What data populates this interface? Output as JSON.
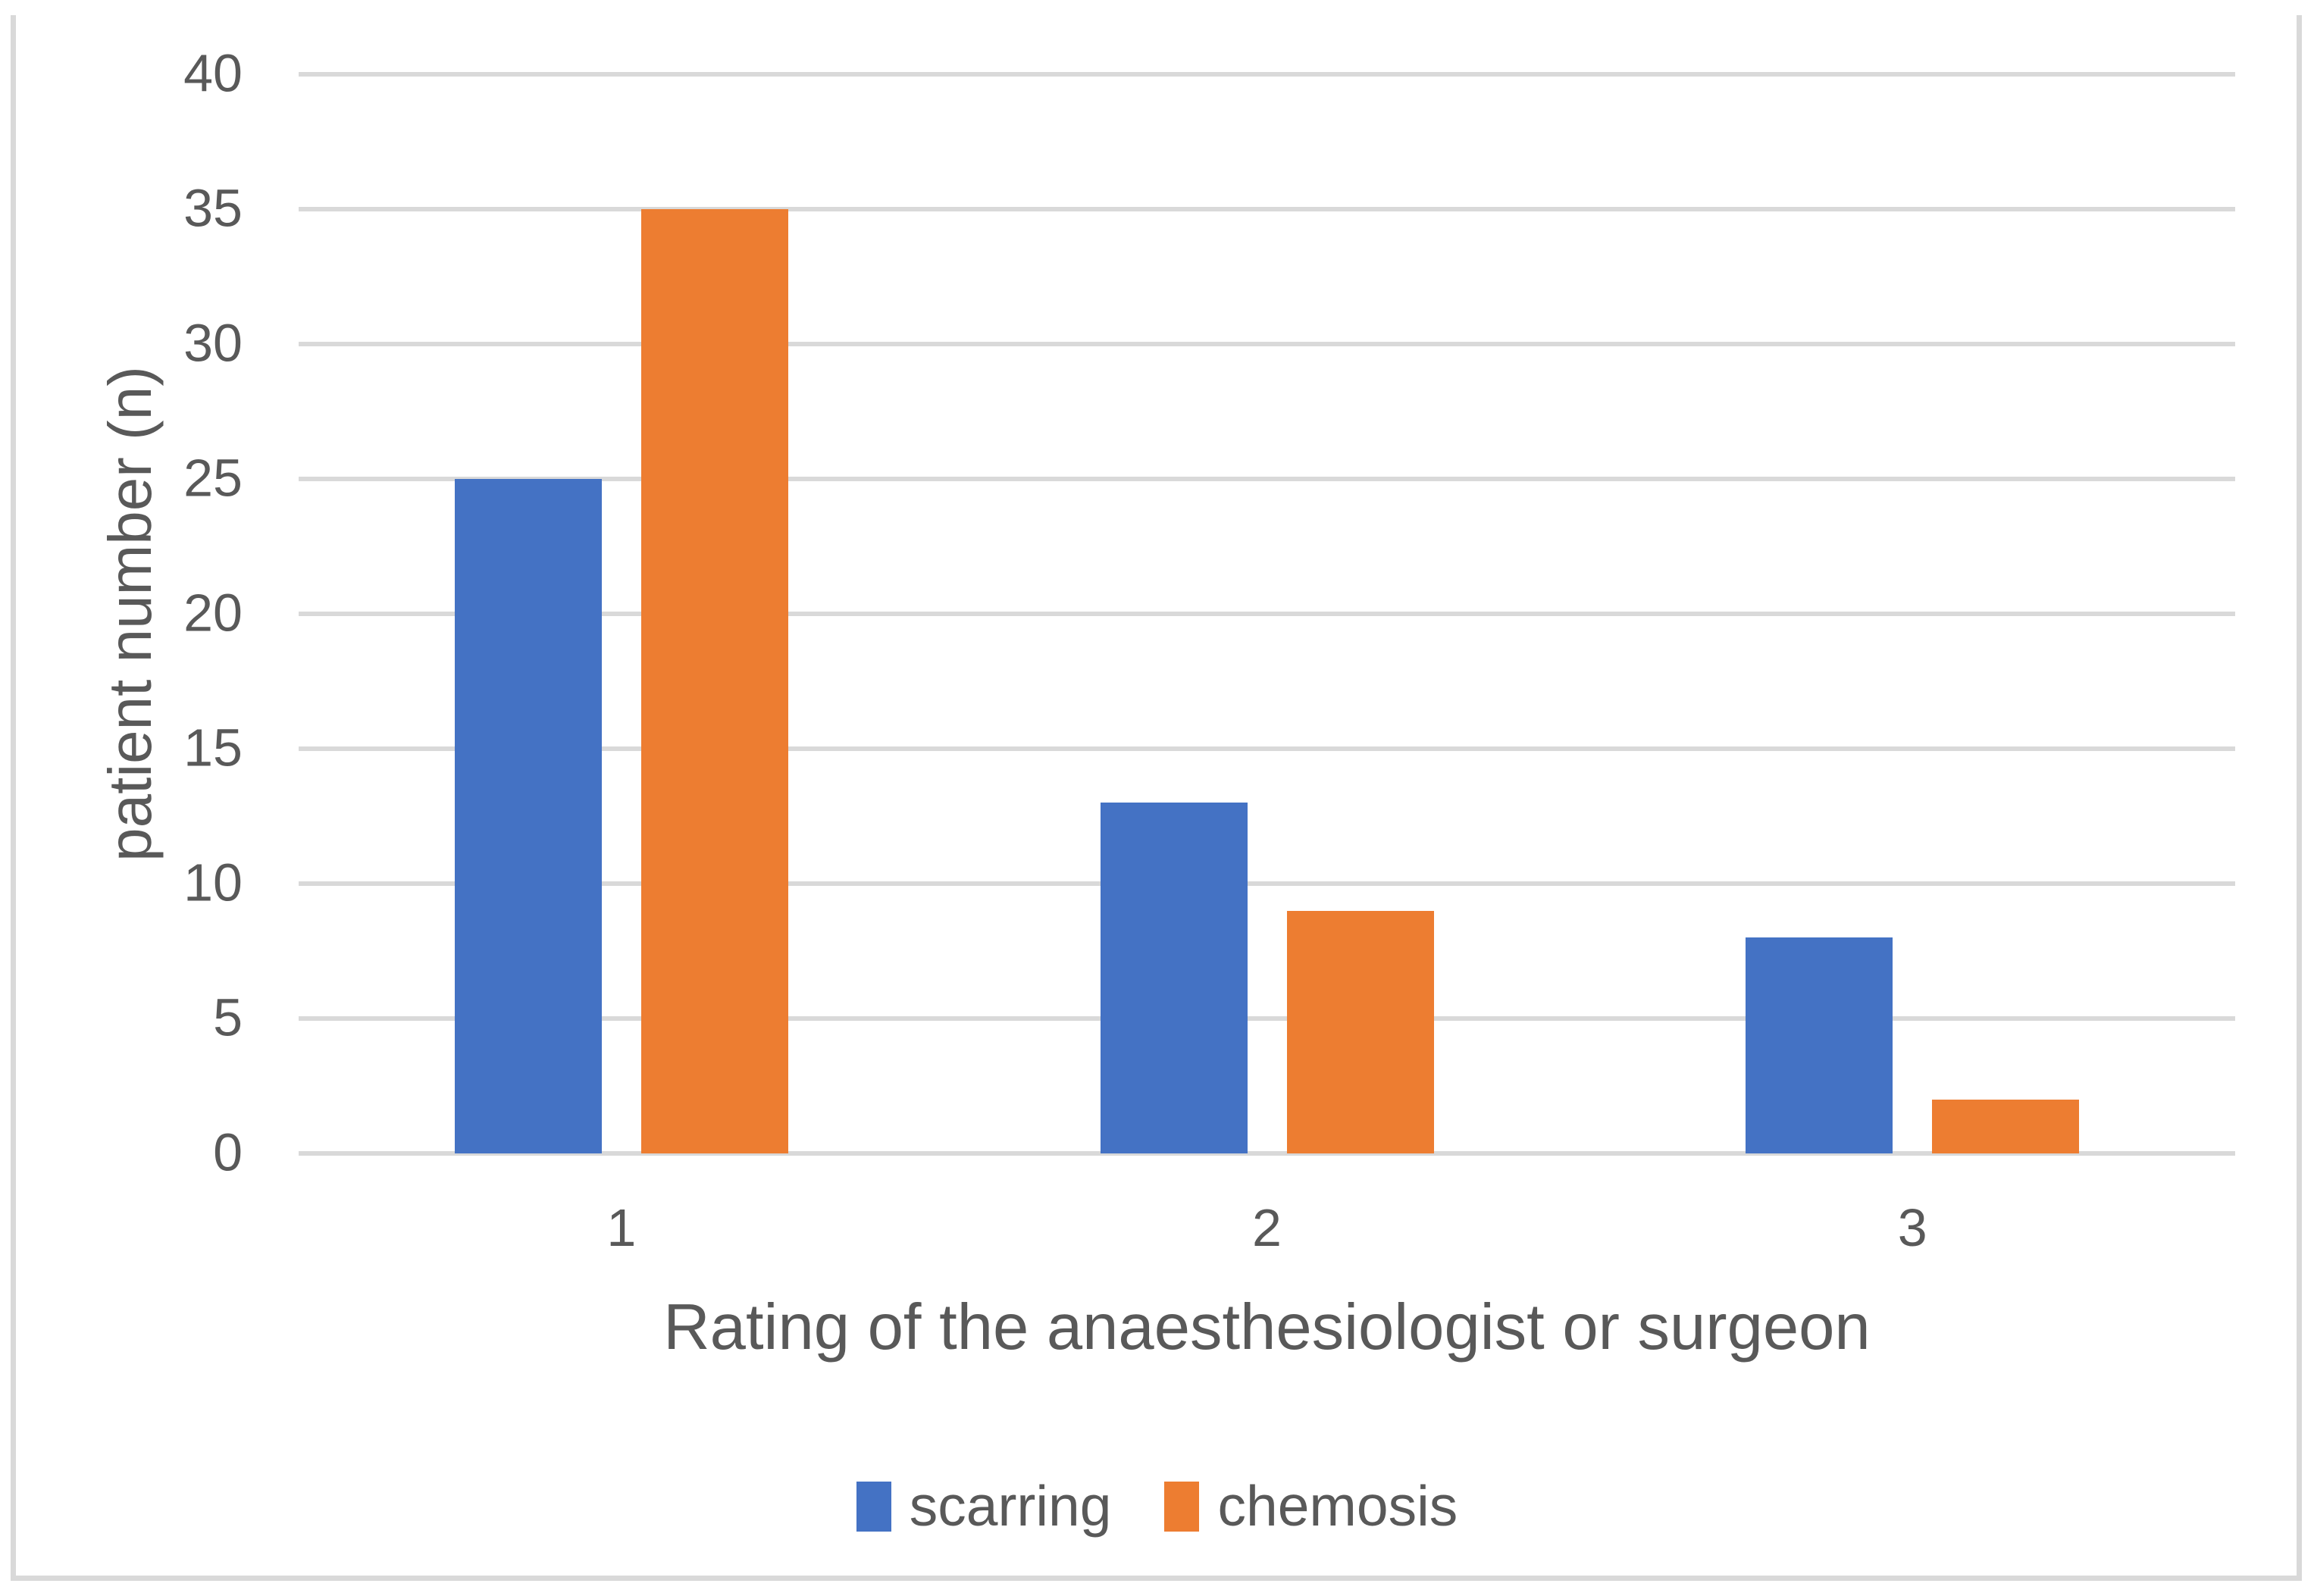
{
  "chart_data": {
    "type": "bar",
    "categories": [
      "1",
      "2",
      "3"
    ],
    "series": [
      {
        "name": "scarring",
        "color": "#4472C4",
        "values": [
          25,
          13,
          8
        ]
      },
      {
        "name": "chemosis",
        "color": "#ED7D31",
        "values": [
          35,
          9,
          2
        ]
      }
    ],
    "title": "",
    "xlabel": "Rating of the anaesthesiologist or surgeon",
    "ylabel": "patient number (n)",
    "ylim": [
      0,
      40
    ],
    "ytick_step": 5,
    "grid": true,
    "legend_position": "bottom"
  },
  "colors": {
    "background": "#FFFFFF",
    "gridline": "#D9D9D9",
    "frame_border": "#D9D9D9",
    "text": "#595959",
    "series_scarring": "#4472C4",
    "series_chemosis": "#ED7D31"
  }
}
